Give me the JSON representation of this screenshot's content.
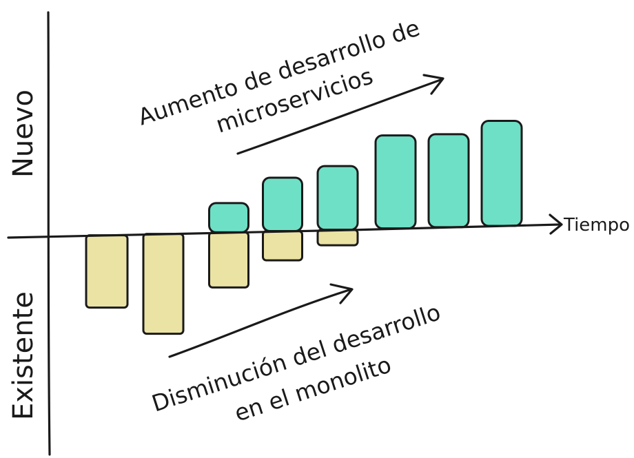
{
  "chart_data": {
    "type": "bar",
    "ylabel_positive": "Nuevo",
    "ylabel_negative": "Existente",
    "xlabel": "Tiempo",
    "annotations": {
      "top": [
        "Aumento de desarrollo de",
        "microservicios"
      ],
      "bottom": [
        "Disminución del desarrollo",
        "en el monolito"
      ]
    },
    "series": [
      {
        "values": [
          0,
          0,
          0.85,
          1.55,
          1.85,
          2.7,
          2.7,
          3.05
        ]
      },
      {
        "values": [
          -2.1,
          -2.9,
          -1.6,
          -0.85,
          -0.45,
          0,
          0,
          0
        ]
      }
    ],
    "colors": {
      "new": "#6ee0c6",
      "old": "#ebe3a3",
      "ink": "#1a1a1a"
    }
  }
}
